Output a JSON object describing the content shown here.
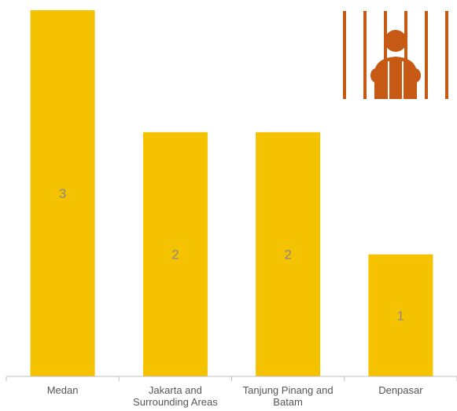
{
  "colors": {
    "bar": "#F5C200",
    "axis": "#BFBFBF",
    "icon": "#C65A14"
  },
  "icon": "prisoner-behind-bars-icon",
  "chart_data": {
    "type": "bar",
    "categories": [
      [
        "Medan"
      ],
      [
        "Jakarta and",
        "Surrounding Areas"
      ],
      [
        "Tanjung Pinang and",
        "Batam"
      ],
      [
        "Denpasar"
      ]
    ],
    "values": [
      3,
      2,
      2,
      1
    ],
    "title": "",
    "xlabel": "",
    "ylabel": "",
    "ylim": [
      0,
      3
    ],
    "grid": false,
    "legend": "none"
  }
}
